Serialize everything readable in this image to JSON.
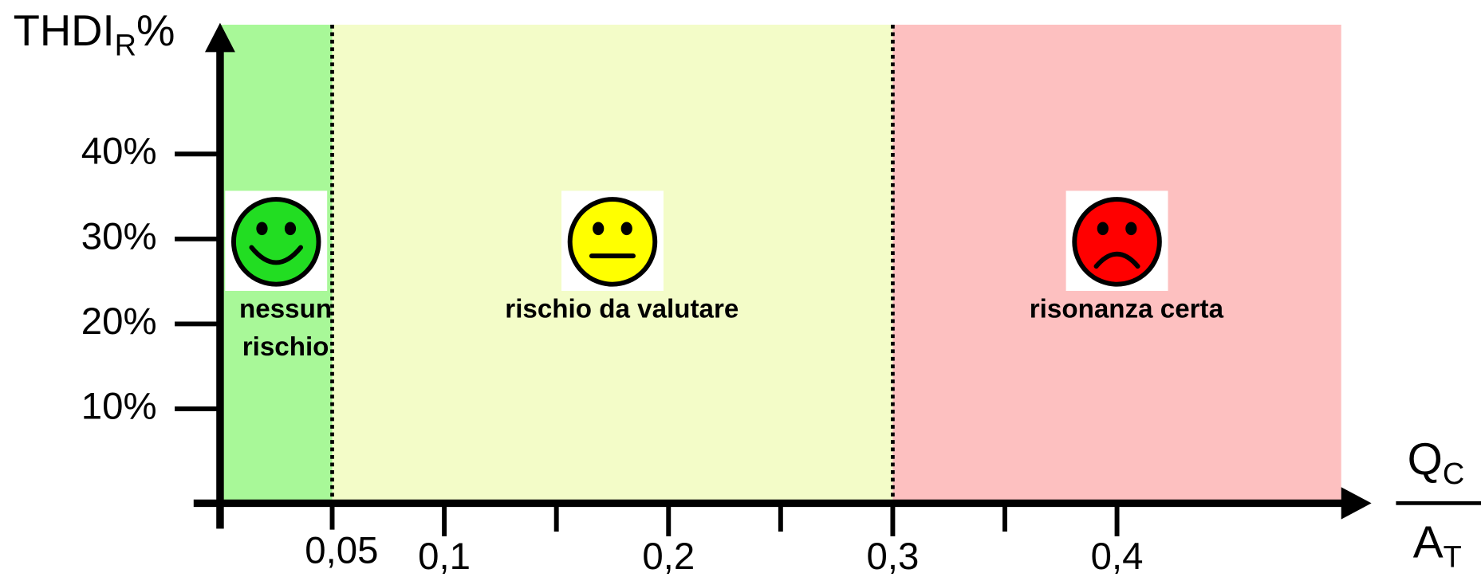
{
  "chart_data": {
    "type": "zones",
    "y_label": {
      "main": "THDI",
      "sub": "R",
      "suffix": "%"
    },
    "x_label": {
      "numerator": "Q",
      "numerator_sub": "C",
      "denominator": "A",
      "denominator_sub": "T"
    },
    "xlim": [
      0,
      0.5
    ],
    "ylim": [
      0,
      55
    ],
    "xticks": [
      {
        "value": 0.05,
        "label": "0,05"
      },
      {
        "value": 0.1,
        "label": "0,1"
      },
      {
        "value": 0.2,
        "label": "0,2"
      },
      {
        "value": 0.3,
        "label": "0,3"
      },
      {
        "value": 0.4,
        "label": "0,4"
      }
    ],
    "xminorticks": [
      0.15,
      0.25,
      0.35
    ],
    "yticks": [
      {
        "value": 10,
        "label": "10%"
      },
      {
        "value": 20,
        "label": "20%"
      },
      {
        "value": 30,
        "label": "30%"
      },
      {
        "value": 40,
        "label": "40%"
      }
    ],
    "zones": [
      {
        "label": [
          "nessun",
          "rischio"
        ],
        "from": 0,
        "to": 0.05,
        "color": "#a8f898",
        "face": "smile",
        "face_color": "#22dd22"
      },
      {
        "label": [
          "rischio da valutare"
        ],
        "from": 0.05,
        "to": 0.3,
        "color": "#f3fcc8",
        "face": "neutral",
        "face_color": "#ffff00"
      },
      {
        "label": [
          "risonanza certa"
        ],
        "from": 0.3,
        "to": 0.5,
        "color": "#fdc0c0",
        "face": "sad",
        "face_color": "#ff0000"
      }
    ]
  }
}
